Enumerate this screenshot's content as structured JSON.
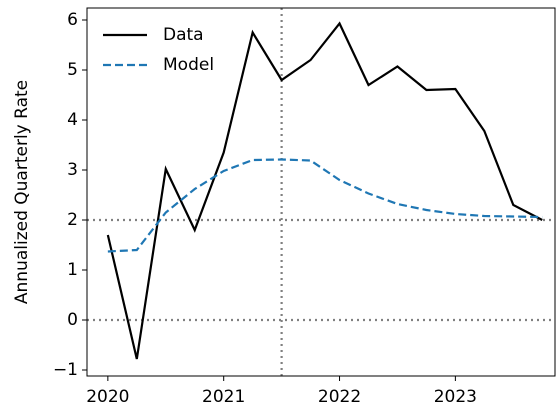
{
  "chart_data": {
    "type": "line",
    "ylabel": "Annualized Quarterly Rate",
    "x": [
      2020.0,
      2020.25,
      2020.5,
      2020.75,
      2021.0,
      2021.25,
      2021.5,
      2021.75,
      2022.0,
      2022.25,
      2022.5,
      2022.75,
      2023.0,
      2023.25,
      2023.5,
      2023.75
    ],
    "series": [
      {
        "name": "Data",
        "color": "#000000",
        "dash": "solid",
        "values": [
          1.7,
          -0.78,
          3.02,
          1.8,
          3.35,
          5.75,
          4.8,
          5.2,
          5.93,
          4.7,
          5.07,
          4.6,
          4.62,
          3.78,
          2.3,
          2.0
        ]
      },
      {
        "name": "Model",
        "color": "#1f77b4",
        "dash": "dashed",
        "values": [
          1.37,
          1.4,
          2.15,
          2.62,
          2.98,
          3.2,
          3.21,
          3.19,
          2.8,
          2.53,
          2.32,
          2.2,
          2.12,
          2.08,
          2.07,
          2.06
        ]
      }
    ],
    "xlim": [
      2019.82,
      2023.86
    ],
    "ylim": [
      -1.12,
      6.24
    ],
    "xticks": [
      2020,
      2021,
      2022,
      2023
    ],
    "yticks": [
      {
        "value": -1,
        "label": "−1"
      },
      0,
      1,
      2,
      3,
      4,
      5,
      6
    ],
    "hlines": [
      0,
      2
    ],
    "vlines": [
      2021.5
    ],
    "legend": "upper left"
  }
}
